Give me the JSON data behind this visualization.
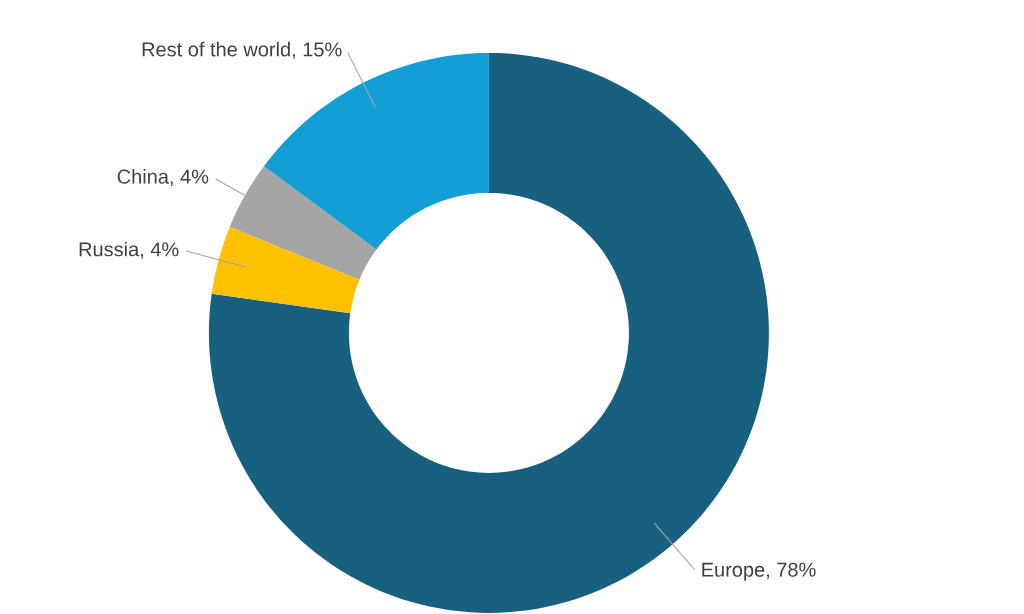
{
  "chart_data": {
    "type": "donut",
    "categories": [
      "Europe, 78%",
      "Russia, 4%",
      "China, 4%",
      "Rest of the world, 15%"
    ],
    "values": [
      78,
      4,
      4,
      15
    ],
    "colors": [
      "#17607f",
      "#ffc000",
      "#a5a5a5",
      "#139fd6"
    ]
  }
}
